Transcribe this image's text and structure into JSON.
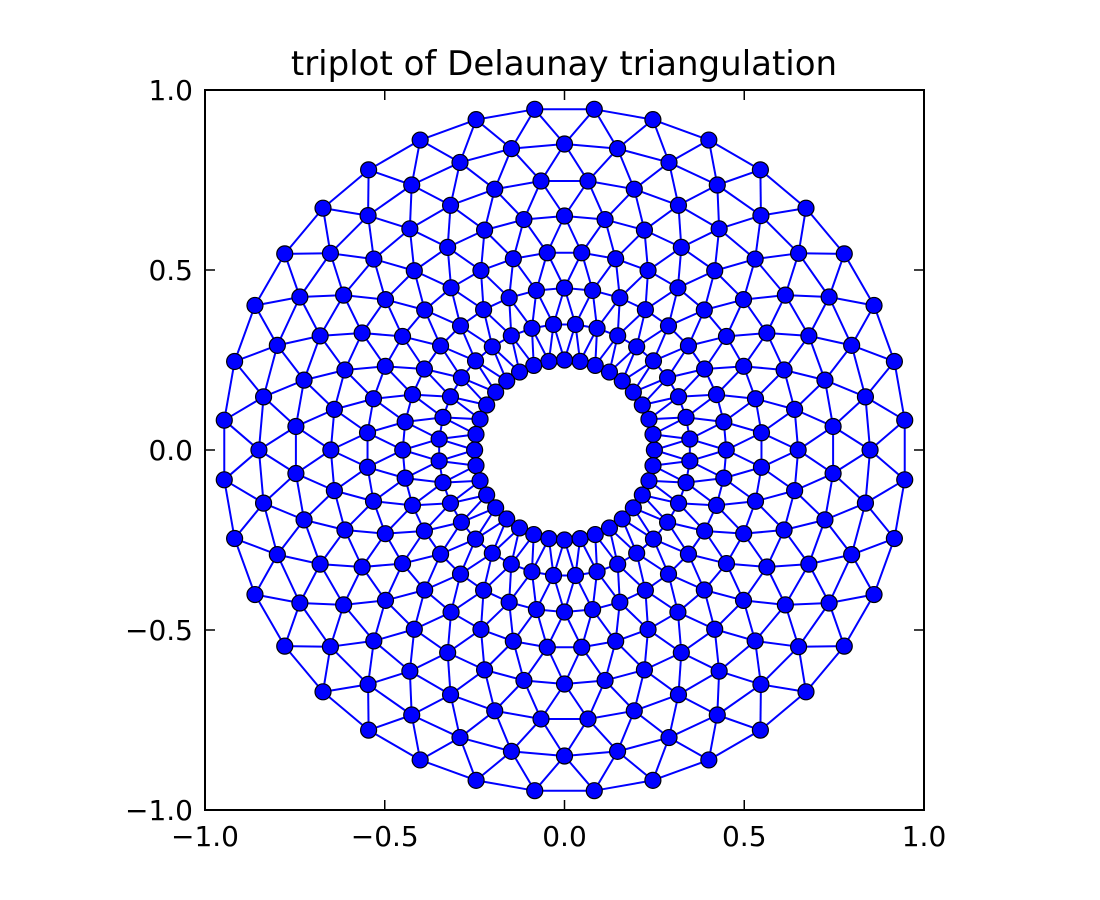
{
  "chart_data": {
    "type": "scatter",
    "title": "triplot of Delaunay triangulation",
    "xlabel": "",
    "ylabel": "",
    "xlim": [
      -1.0,
      1.0
    ],
    "ylim": [
      -1.0,
      1.0
    ],
    "xticks": [
      "−1.0",
      "−0.5",
      "0.0",
      "0.5",
      "1.0"
    ],
    "yticks": [
      "−1.0",
      "−0.5",
      "0.0",
      "0.5",
      "1.0"
    ],
    "xtick_values": [
      -1.0,
      -0.5,
      0.0,
      0.5,
      1.0
    ],
    "ytick_values": [
      -1.0,
      -0.5,
      0.0,
      0.5,
      1.0
    ],
    "grid": false,
    "line_color": "#0000ff",
    "marker_color": "#0000ff",
    "mesh": {
      "n_angles": 36,
      "n_radii": 8,
      "min_radius": 0.25,
      "max_radius": 0.95
    }
  }
}
